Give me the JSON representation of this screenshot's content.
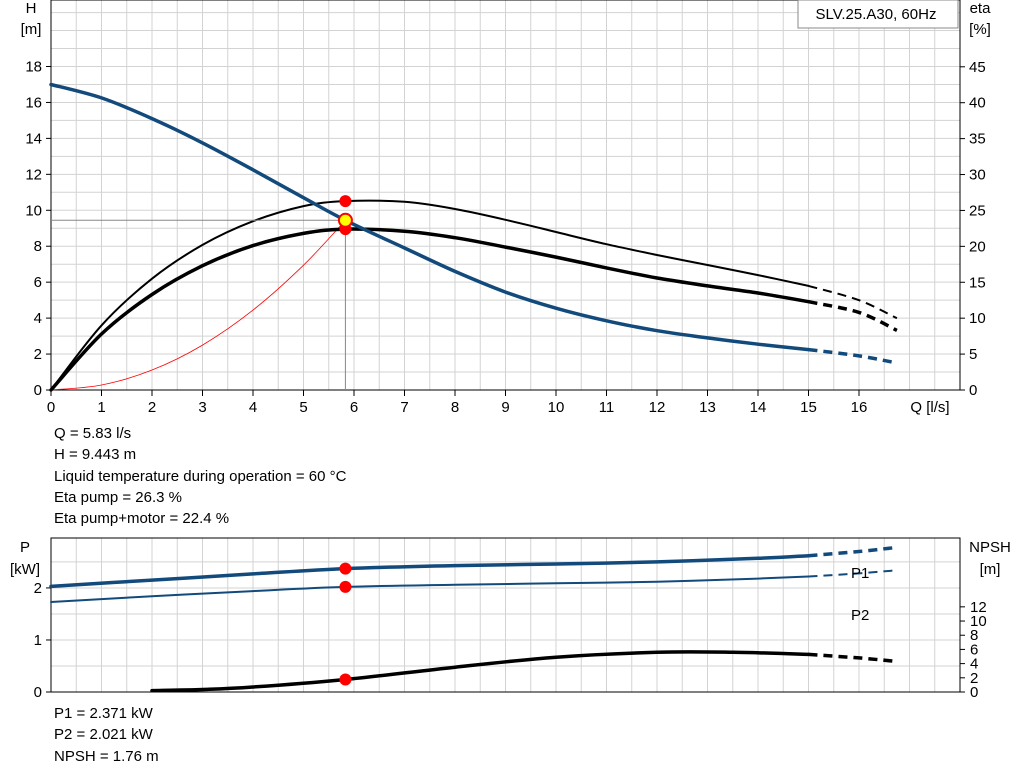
{
  "model_box": "SLV.25.A30, 60Hz",
  "info_top": [
    "Q = 5.83 l/s",
    "H = 9.443 m",
    "Liquid temperature during operation = 60 °C",
    "Eta pump = 26.3 %",
    "Eta pump+motor = 22.4 %"
  ],
  "info_bottom": [
    "P1 = 2.371 kW",
    "P2 = 2.021 kW",
    "NPSH = 1.76 m"
  ],
  "colors": {
    "blue": "#124a7c",
    "black": "#000000",
    "red": "#ff0000",
    "grid": "#d3d3d3",
    "marker": "#ff0000",
    "op_marker_fill": "#ffff00"
  },
  "chart_data": [
    {
      "type": "line",
      "axes": {
        "x": {
          "label": "Q [l/s]",
          "range": [
            0,
            18
          ],
          "ticks": [
            0,
            1,
            2,
            3,
            4,
            5,
            6,
            7,
            8,
            9,
            10,
            11,
            12,
            13,
            14,
            15,
            16
          ]
        },
        "y_left": {
          "label_line1": "H",
          "label_line2": "[m]",
          "range": [
            0,
            21.7
          ],
          "ticks": [
            0,
            2,
            4,
            6,
            8,
            10,
            12,
            14,
            16,
            18
          ]
        },
        "y_right": {
          "label_line1": "eta",
          "label_line2": "[%]",
          "range": [
            0,
            54.3
          ],
          "ticks": [
            0,
            5,
            10,
            15,
            20,
            25,
            30,
            35,
            40,
            45
          ]
        }
      },
      "grid": true,
      "series": [
        {
          "key": "H",
          "axis": "left",
          "color": "blue",
          "width": 3.5,
          "solid": [
            [
              0,
              17.0
            ],
            [
              1,
              16.25
            ],
            [
              2,
              15.1
            ],
            [
              3,
              13.75
            ],
            [
              4,
              12.25
            ],
            [
              5,
              10.7
            ],
            [
              5.83,
              9.443
            ],
            [
              7,
              7.9
            ],
            [
              8,
              6.6
            ],
            [
              9,
              5.45
            ],
            [
              10,
              4.55
            ],
            [
              11,
              3.85
            ],
            [
              12,
              3.3
            ],
            [
              13,
              2.9
            ],
            [
              14,
              2.55
            ],
            [
              15,
              2.25
            ]
          ],
          "dashed": [
            [
              15,
              2.25
            ],
            [
              16,
              1.9
            ],
            [
              16.75,
              1.5
            ]
          ]
        },
        {
          "key": "eta_pump",
          "axis": "right",
          "color": "black",
          "width": 2,
          "solid": [
            [
              0,
              0
            ],
            [
              1,
              9.0
            ],
            [
              2,
              15.5
            ],
            [
              3,
              20.2
            ],
            [
              4,
              23.5
            ],
            [
              5,
              25.6
            ],
            [
              5.83,
              26.3
            ],
            [
              7,
              26.2
            ],
            [
              8,
              25.2
            ],
            [
              9,
              23.7
            ],
            [
              10,
              22.0
            ],
            [
              11,
              20.3
            ],
            [
              12,
              18.8
            ],
            [
              13,
              17.4
            ],
            [
              14,
              16.0
            ],
            [
              15,
              14.5
            ]
          ],
          "dashed": [
            [
              15,
              14.5
            ],
            [
              16,
              12.5
            ],
            [
              16.75,
              10.0
            ]
          ]
        },
        {
          "key": "eta_pump_motor",
          "axis": "right",
          "color": "black",
          "width": 3.5,
          "solid": [
            [
              0,
              0
            ],
            [
              1,
              7.8
            ],
            [
              2,
              13.3
            ],
            [
              3,
              17.3
            ],
            [
              4,
              20.1
            ],
            [
              5,
              21.8
            ],
            [
              5.83,
              22.4
            ],
            [
              7,
              22.1
            ],
            [
              8,
              21.2
            ],
            [
              9,
              19.9
            ],
            [
              10,
              18.5
            ],
            [
              11,
              17.0
            ],
            [
              12,
              15.6
            ],
            [
              13,
              14.5
            ],
            [
              14,
              13.5
            ],
            [
              15,
              12.3
            ]
          ],
          "dashed": [
            [
              15,
              12.3
            ],
            [
              16,
              10.8
            ],
            [
              16.75,
              8.3
            ]
          ]
        },
        {
          "key": "system_curve",
          "axis": "left",
          "color": "red",
          "width": 0.8,
          "solid": [
            [
              0,
              0
            ],
            [
              1,
              0.278
            ],
            [
              2,
              1.111
            ],
            [
              3,
              2.5
            ],
            [
              4,
              4.444
            ],
            [
              5,
              6.944
            ],
            [
              5.83,
              9.443
            ]
          ]
        }
      ],
      "operating_point": {
        "Q": 5.83,
        "H": 9.443,
        "eta_pump": 26.3,
        "eta_pump_motor": 22.4
      }
    },
    {
      "type": "line",
      "axes": {
        "x": {
          "range": [
            0,
            18
          ]
        },
        "y_left": {
          "label_line1": "P",
          "label_line2": "[kW]",
          "range": [
            0,
            2.96
          ],
          "ticks": [
            0,
            1,
            2
          ]
        },
        "y_right": {
          "label_line1": "NPSH",
          "label_line2": "[m]",
          "range": [
            0,
            21.7
          ],
          "ticks": [
            0,
            2,
            4,
            6,
            8,
            10,
            12
          ]
        }
      },
      "grid": true,
      "series": [
        {
          "name": "P1",
          "axis": "left",
          "color": "blue",
          "width": 3.5,
          "solid": [
            [
              0,
              2.03
            ],
            [
              2,
              2.15
            ],
            [
              4,
              2.27
            ],
            [
              5.83,
              2.371
            ],
            [
              8,
              2.43
            ],
            [
              10,
              2.46
            ],
            [
              12,
              2.5
            ],
            [
              14,
              2.57
            ],
            [
              15,
              2.62
            ]
          ],
          "dashed": [
            [
              15,
              2.62
            ],
            [
              16,
              2.7
            ],
            [
              16.75,
              2.78
            ]
          ]
        },
        {
          "name": "P2",
          "axis": "left",
          "color": "blue",
          "width": 2,
          "solid": [
            [
              0,
              1.73
            ],
            [
              2,
              1.84
            ],
            [
              4,
              1.94
            ],
            [
              5.83,
              2.021
            ],
            [
              8,
              2.06
            ],
            [
              10,
              2.09
            ],
            [
              12,
              2.12
            ],
            [
              14,
              2.18
            ],
            [
              15,
              2.22
            ]
          ],
          "dashed": [
            [
              15,
              2.22
            ],
            [
              16,
              2.28
            ],
            [
              16.75,
              2.34
            ]
          ]
        },
        {
          "name": "NPSH",
          "axis": "right",
          "color": "black",
          "width": 3.5,
          "solid": [
            [
              2,
              0.2
            ],
            [
              3,
              0.35
            ],
            [
              4,
              0.7
            ],
            [
              5.83,
              1.76
            ],
            [
              8,
              3.5
            ],
            [
              10,
              4.9
            ],
            [
              12,
              5.6
            ],
            [
              13.5,
              5.6
            ],
            [
              15,
              5.3
            ]
          ],
          "dashed": [
            [
              15,
              5.3
            ],
            [
              16,
              4.8
            ],
            [
              16.75,
              4.3
            ]
          ]
        }
      ],
      "operating_point": {
        "Q": 5.83,
        "P1": 2.371,
        "P2": 2.021,
        "NPSH": 1.76
      }
    }
  ]
}
